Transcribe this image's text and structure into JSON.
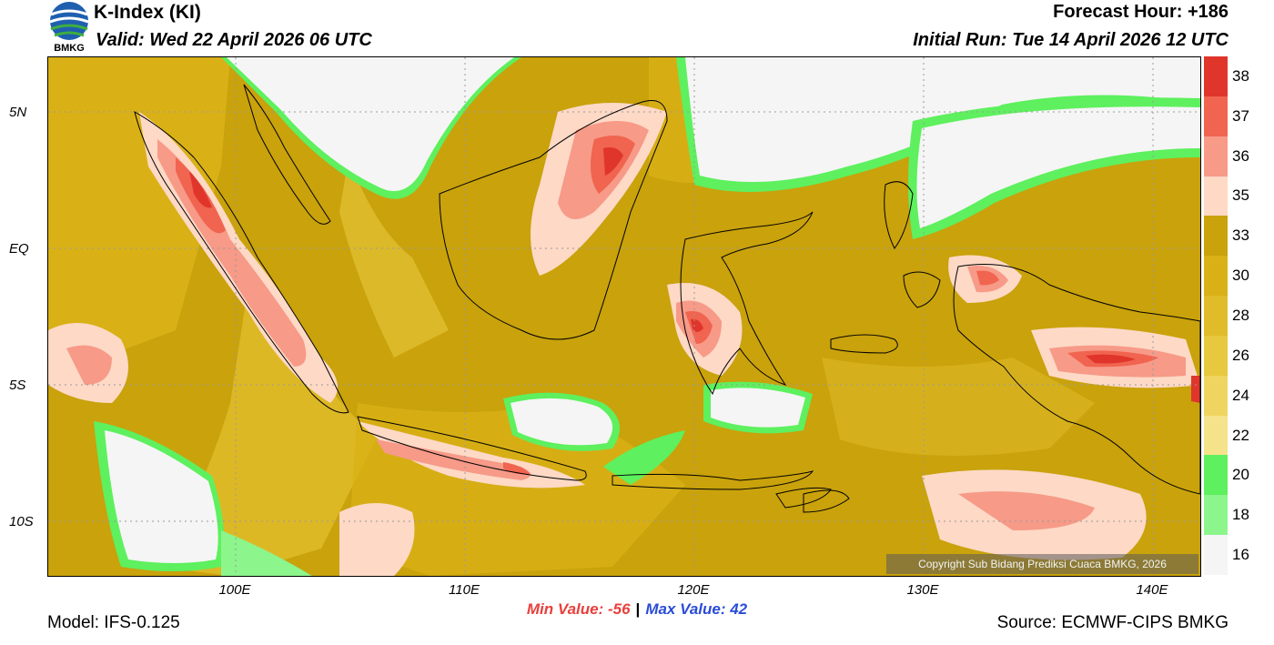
{
  "header": {
    "logo_text": "BMKG",
    "title": "K-Index (KI)",
    "valid": "Valid: Wed 22 April 2026 06 UTC",
    "forecast_hour": "Forecast Hour: +186",
    "initial_run": "Initial Run: Tue 14 April 2026 12 UTC"
  },
  "axes": {
    "lat_labels": [
      "5N",
      "EQ",
      "5S",
      "10S"
    ],
    "lon_labels": [
      "100E",
      "110E",
      "120E",
      "130E",
      "140E"
    ]
  },
  "map": {
    "copyright": "Copyright Sub Bidang Prediksi Cuaca BMKG, 2026"
  },
  "legend": {
    "labels": [
      "38",
      "37",
      "36",
      "35",
      "33",
      "30",
      "28",
      "26",
      "24",
      "22",
      "20",
      "18",
      "16"
    ],
    "colors": [
      "#e0352b",
      "#f06450",
      "#f79a88",
      "#fdd9c6",
      "#c9a20c",
      "#d9b117",
      "#e0bc2a",
      "#e8c83e",
      "#efd560",
      "#f5e38b",
      "#5ef05e",
      "#8cf58c",
      "#f5f5f5"
    ]
  },
  "stats": {
    "min": "Min Value: -56",
    "separator": "|",
    "max": "Max Value:  42"
  },
  "footer": {
    "model": "Model: IFS-0.125",
    "source": "Source: ECMWF-CIPS BMKG"
  }
}
